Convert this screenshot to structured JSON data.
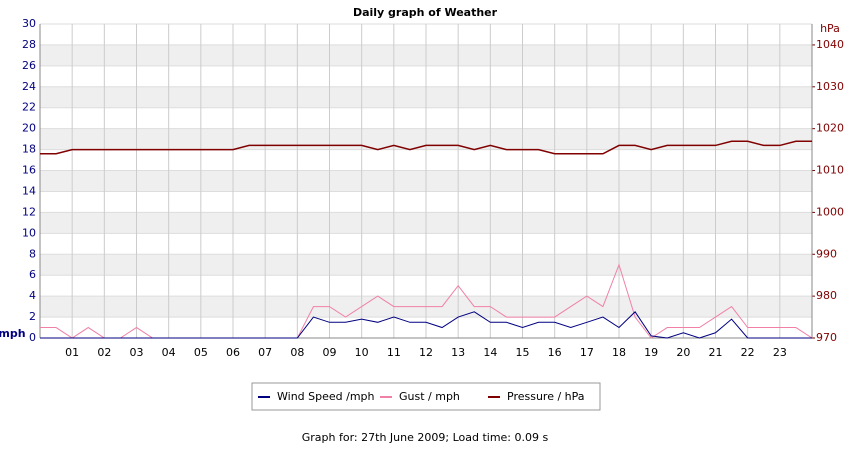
{
  "chart_data": {
    "type": "line",
    "title": "Daily graph of Weather",
    "y_label": "mph",
    "y2_label": "hPa",
    "x": [
      0,
      0.5,
      1,
      1.5,
      2,
      2.5,
      3,
      3.5,
      4,
      4.5,
      5,
      5.5,
      6,
      6.5,
      7,
      7.5,
      8,
      8.5,
      9,
      9.5,
      10,
      10.5,
      11,
      11.5,
      12,
      12.5,
      13,
      13.5,
      14,
      14.5,
      15,
      15.5,
      16,
      16.5,
      17,
      17.5,
      18,
      18.5,
      19,
      19.5,
      20,
      20.5,
      21,
      21.5,
      22,
      22.5,
      23,
      23.5,
      24
    ],
    "xlim": [
      0,
      24
    ],
    "xticks": [
      {
        "value": 1,
        "label": "01"
      },
      {
        "value": 2,
        "label": "02"
      },
      {
        "value": 3,
        "label": "03"
      },
      {
        "value": 4,
        "label": "04"
      },
      {
        "value": 5,
        "label": "05"
      },
      {
        "value": 6,
        "label": "06"
      },
      {
        "value": 7,
        "label": "07"
      },
      {
        "value": 8,
        "label": "08"
      },
      {
        "value": 9,
        "label": "09"
      },
      10,
      11,
      12,
      13,
      14,
      15,
      16,
      17,
      18,
      19,
      20,
      21,
      22,
      23
    ],
    "ylim": [
      0,
      30
    ],
    "yticks": [
      0,
      2,
      4,
      6,
      8,
      10,
      12,
      14,
      16,
      18,
      20,
      22,
      24,
      26,
      28,
      30
    ],
    "y2lim": [
      970,
      1045
    ],
    "y2ticks": [
      970,
      980,
      990,
      1000,
      1010,
      1020,
      1030,
      1040
    ],
    "grid": true,
    "series": [
      {
        "name": "Wind Speed /mph",
        "color": "#000080",
        "values": [
          0,
          0,
          0,
          0,
          0,
          0,
          0,
          0,
          0,
          0,
          0,
          0,
          0,
          0,
          0,
          0,
          0,
          2,
          1.5,
          1.5,
          1.8,
          1.5,
          2,
          1.5,
          1.5,
          1,
          2,
          2.5,
          1.5,
          1.5,
          1,
          1.5,
          1.5,
          1,
          1.5,
          2,
          1,
          2.5,
          0.2,
          0,
          0.5,
          0,
          0.5,
          1.8,
          0,
          0,
          0,
          0,
          0
        ]
      },
      {
        "name": "Gust / mph",
        "color": "#f080a8",
        "values": [
          1,
          1,
          0,
          1,
          0,
          0,
          1,
          0,
          0,
          0,
          0,
          0,
          0,
          0,
          0,
          0,
          0,
          3,
          3,
          2,
          3,
          4,
          3,
          3,
          3,
          3,
          5,
          3,
          3,
          2,
          2,
          2,
          2,
          3,
          4,
          3,
          7,
          2,
          0,
          1,
          1,
          1,
          2,
          3,
          1,
          1,
          1,
          1,
          0
        ]
      },
      {
        "name": "Pressure / hPa",
        "color": "#800000",
        "axis": "y2",
        "values": [
          1014,
          1014,
          1015,
          1015,
          1015,
          1015,
          1015,
          1015,
          1015,
          1015,
          1015,
          1015,
          1015,
          1016,
          1016,
          1016,
          1016,
          1016,
          1016,
          1016,
          1016,
          1015,
          1016,
          1015,
          1016,
          1016,
          1016,
          1015,
          1016,
          1015,
          1015,
          1015,
          1014,
          1014,
          1014,
          1014,
          1016,
          1016,
          1015,
          1016,
          1016,
          1016,
          1016,
          1017,
          1017,
          1016,
          1016,
          1017,
          1017
        ]
      }
    ],
    "footer": "Graph for: 27th June 2009; Load time: 0.09 s"
  }
}
